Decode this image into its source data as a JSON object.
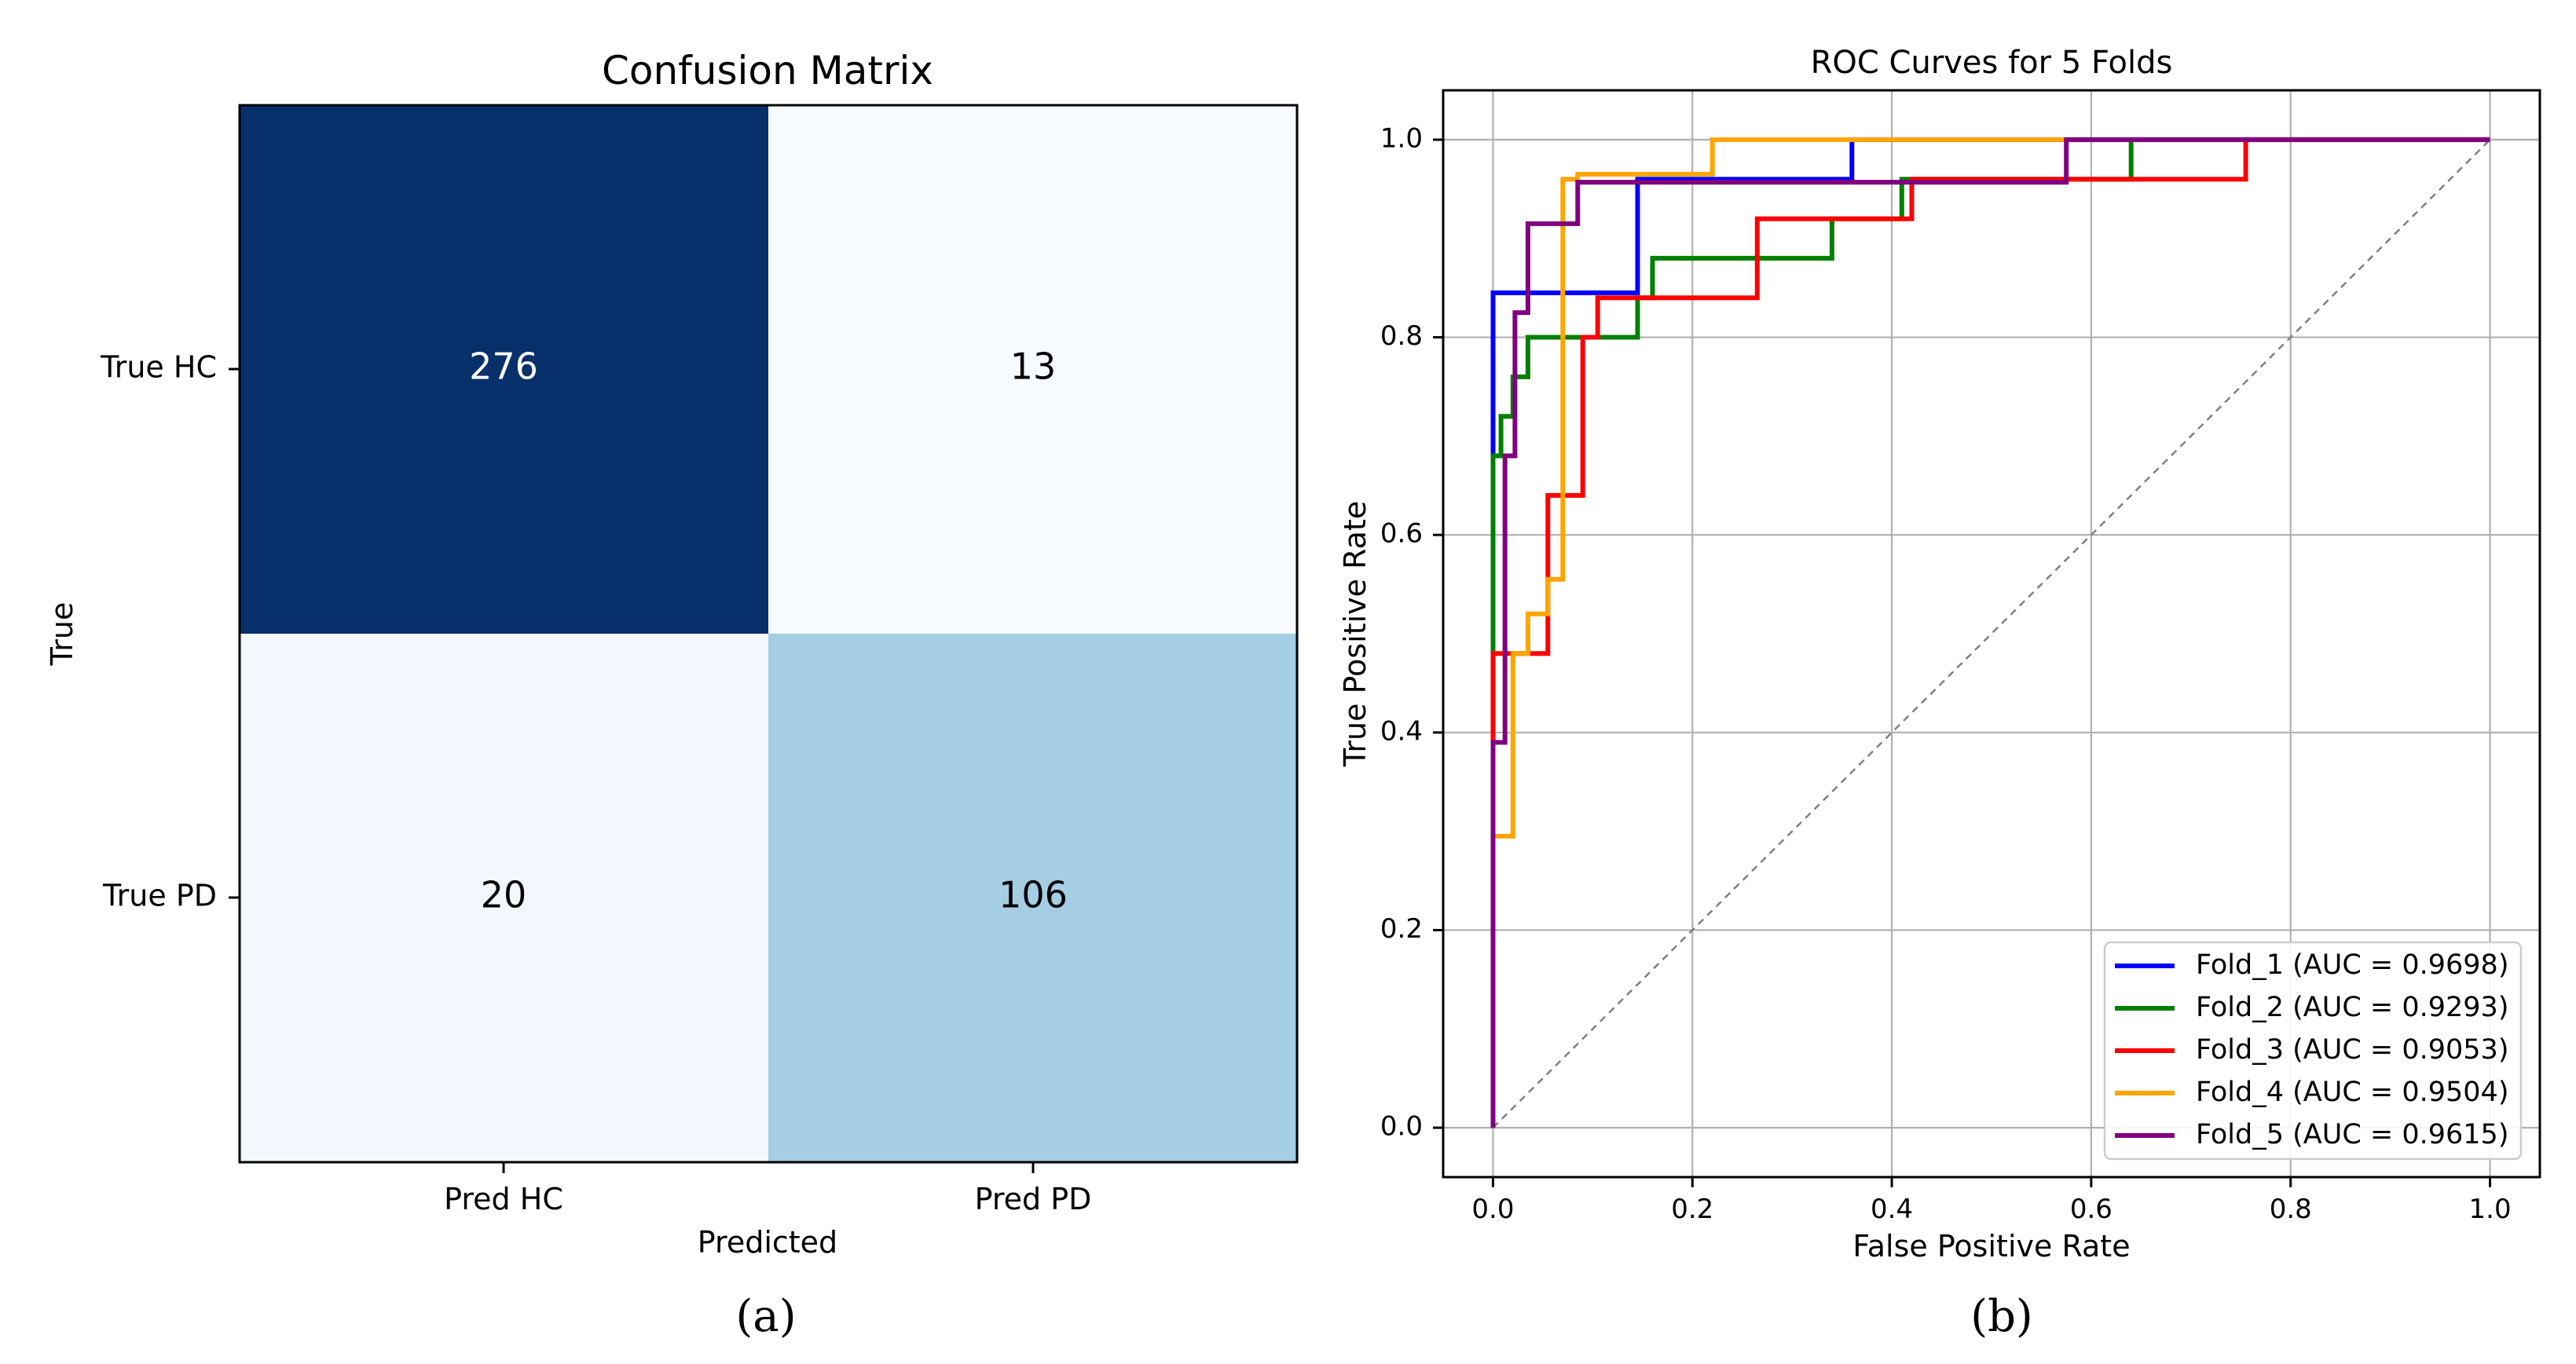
{
  "chart_data": [
    {
      "type": "heatmap",
      "title": "Confusion Matrix",
      "xlabel": "Predicted",
      "ylabel": "True",
      "x_categories": [
        "Pred HC",
        "Pred PD"
      ],
      "y_categories": [
        "True HC",
        "True PD"
      ],
      "values": [
        [
          276,
          13
        ],
        [
          20,
          106
        ]
      ],
      "colormap": "Blues",
      "caption": "(a)"
    },
    {
      "type": "line",
      "title": "ROC Curves for 5 Folds",
      "xlabel": "False Positive Rate",
      "ylabel": "True Positive Rate",
      "xlim": [
        -0.05,
        1.05
      ],
      "ylim": [
        -0.05,
        1.05
      ],
      "xticks": [
        0.0,
        0.2,
        0.4,
        0.6,
        0.8,
        1.0
      ],
      "yticks": [
        0.0,
        0.2,
        0.4,
        0.6,
        0.8,
        1.0
      ],
      "tick_labels": [
        "0.0",
        "0.2",
        "0.4",
        "0.6",
        "0.8",
        "1.0"
      ],
      "grid": true,
      "legend_position": "lower-right",
      "caption": "(b)",
      "diagonal": {
        "x": [
          0,
          1
        ],
        "y": [
          0,
          1
        ],
        "color": "#808080",
        "style": "dashed"
      },
      "series": [
        {
          "name": "Fold_1 (AUC = 0.9698)",
          "color": "#0000ff",
          "x": [
            0,
            0,
            0.145,
            0.145,
            0.36,
            0.36,
            1.0
          ],
          "y": [
            0,
            0.845,
            0.845,
            0.96,
            0.96,
            1.0,
            1.0
          ]
        },
        {
          "name": "Fold_2 (AUC = 0.9293)",
          "color": "#008000",
          "x": [
            0,
            0,
            0.008,
            0.008,
            0.02,
            0.02,
            0.035,
            0.035,
            0.145,
            0.145,
            0.16,
            0.16,
            0.34,
            0.34,
            0.41,
            0.41,
            0.64,
            0.64,
            1.0
          ],
          "y": [
            0,
            0.68,
            0.68,
            0.72,
            0.72,
            0.76,
            0.76,
            0.8,
            0.8,
            0.84,
            0.84,
            0.88,
            0.88,
            0.92,
            0.92,
            0.96,
            0.96,
            1.0,
            1.0
          ]
        },
        {
          "name": "Fold_3 (AUC = 0.9053)",
          "color": "#ff0000",
          "x": [
            0,
            0,
            0.055,
            0.055,
            0.09,
            0.09,
            0.105,
            0.105,
            0.265,
            0.265,
            0.42,
            0.42,
            0.755,
            0.755,
            1.0
          ],
          "y": [
            0,
            0.48,
            0.48,
            0.64,
            0.64,
            0.8,
            0.8,
            0.84,
            0.84,
            0.92,
            0.92,
            0.96,
            0.96,
            1.0,
            1.0
          ]
        },
        {
          "name": "Fold_4 (AUC = 0.9504)",
          "color": "#ffa500",
          "x": [
            0,
            0,
            0.02,
            0.02,
            0.035,
            0.035,
            0.055,
            0.055,
            0.07,
            0.07,
            0.085,
            0.085,
            0.22,
            0.22,
            1.0
          ],
          "y": [
            0,
            0.295,
            0.295,
            0.48,
            0.48,
            0.52,
            0.52,
            0.555,
            0.555,
            0.96,
            0.96,
            0.965,
            0.965,
            1.0,
            1.0
          ]
        },
        {
          "name": "Fold_5 (AUC = 0.9615)",
          "color": "#800080",
          "x": [
            0,
            0,
            0.012,
            0.012,
            0.022,
            0.022,
            0.035,
            0.035,
            0.085,
            0.085,
            0.575,
            0.575,
            1.0
          ],
          "y": [
            0,
            0.39,
            0.39,
            0.68,
            0.68,
            0.825,
            0.825,
            0.915,
            0.915,
            0.957,
            0.957,
            1.0,
            1.0
          ]
        }
      ]
    }
  ]
}
